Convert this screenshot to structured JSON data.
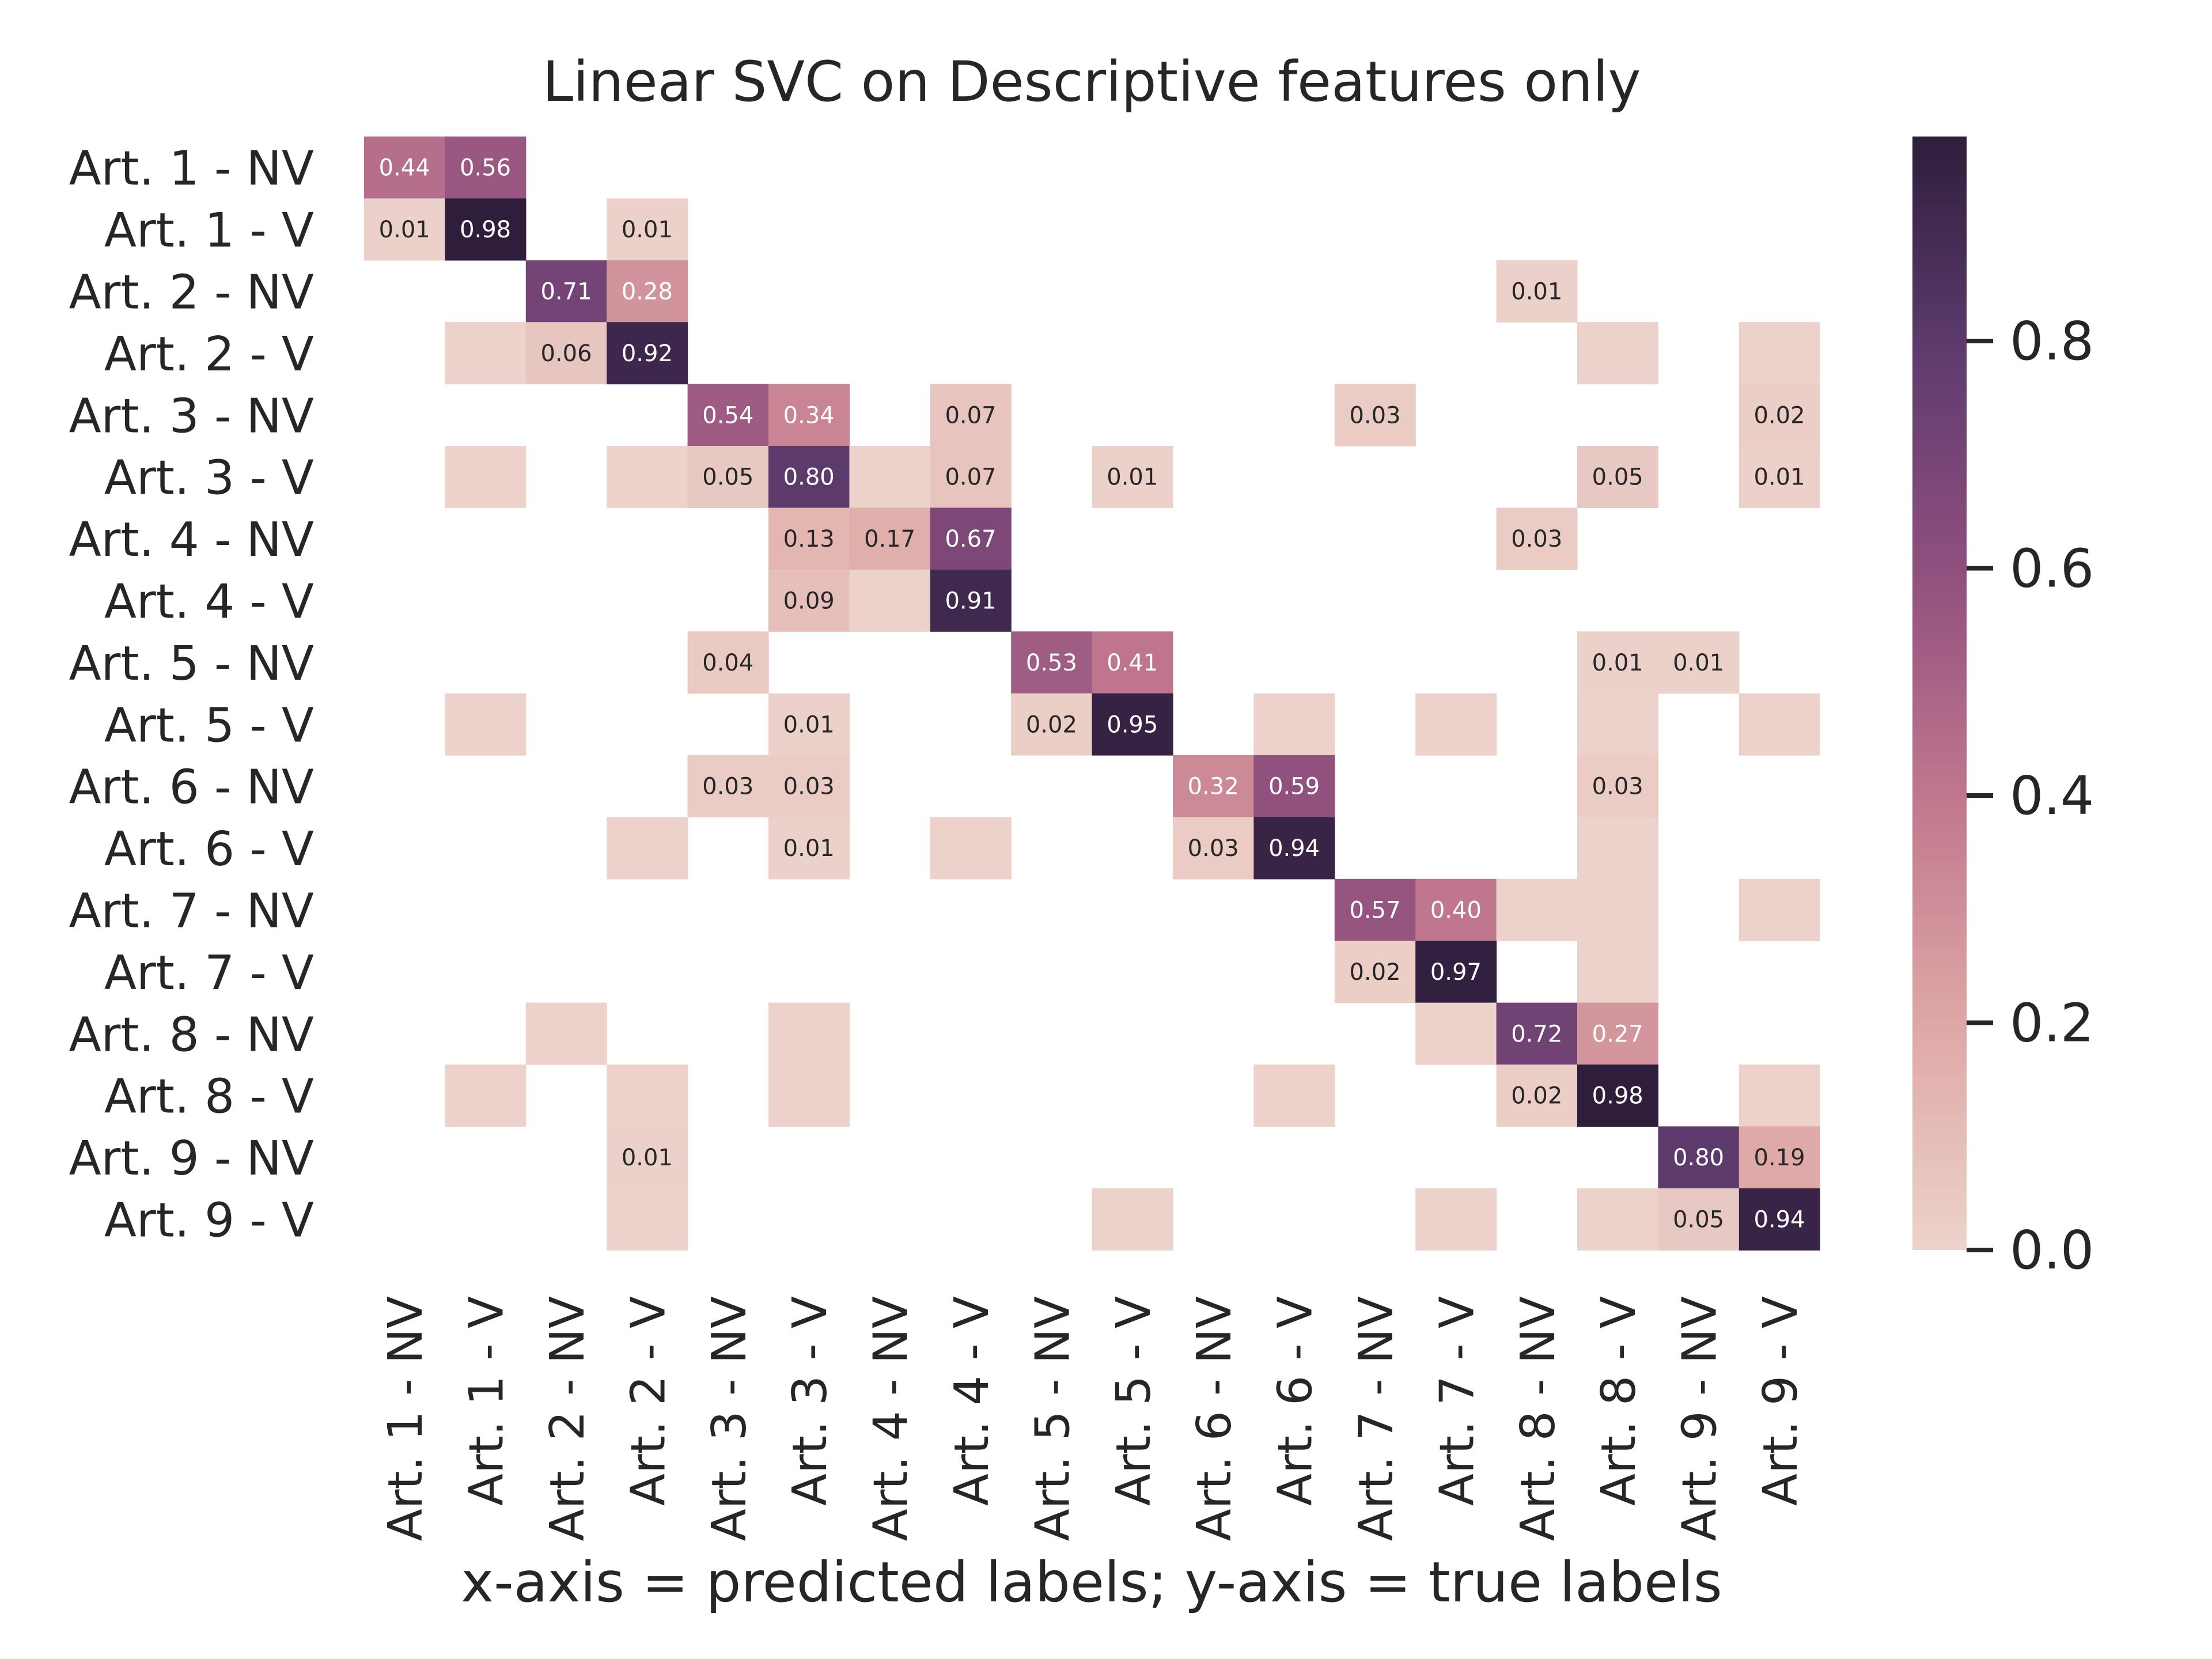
{
  "chart_data": {
    "type": "heatmap",
    "title": "Linear SVC on Descriptive features only",
    "xlabel": "x-axis = predicted labels; y-axis = true labels",
    "ylabel": "",
    "x_categories": [
      "Art. 1 - NV",
      "Art. 1 - V",
      "Art. 2 - NV",
      "Art. 2 - V",
      "Art. 3 - NV",
      "Art. 3 - V",
      "Art. 4 - NV",
      "Art. 4 - V",
      "Art. 5 - NV",
      "Art. 5 - V",
      "Art. 6 - NV",
      "Art. 6 - V",
      "Art. 7 - NV",
      "Art. 7 - V",
      "Art. 8 - NV",
      "Art. 8 - V",
      "Art. 9 - NV",
      "Art. 9 - V"
    ],
    "y_categories": [
      "Art. 1 - NV",
      "Art. 1 - V",
      "Art. 2 - NV",
      "Art. 2 - V",
      "Art. 3 - NV",
      "Art. 3 - V",
      "Art. 4 - NV",
      "Art. 4 - V",
      "Art. 5 - NV",
      "Art. 5 - V",
      "Art. 6 - NV",
      "Art. 6 - V",
      "Art. 7 - NV",
      "Art. 7 - V",
      "Art. 8 - NV",
      "Art. 8 - V",
      "Art. 9 - NV",
      "Art. 9 - V"
    ],
    "cells": [
      {
        "row": 0,
        "col": 0,
        "value": 0.44,
        "label": "0.44"
      },
      {
        "row": 0,
        "col": 1,
        "value": 0.56,
        "label": "0.56"
      },
      {
        "row": 1,
        "col": 0,
        "value": 0.01,
        "label": "0.01"
      },
      {
        "row": 1,
        "col": 1,
        "value": 0.98,
        "label": "0.98"
      },
      {
        "row": 1,
        "col": 3,
        "value": 0.01,
        "label": "0.01"
      },
      {
        "row": 2,
        "col": 2,
        "value": 0.71,
        "label": "0.71"
      },
      {
        "row": 2,
        "col": 3,
        "value": 0.28,
        "label": "0.28"
      },
      {
        "row": 2,
        "col": 14,
        "value": 0.01,
        "label": "0.01"
      },
      {
        "row": 3,
        "col": 1,
        "value": 0.004,
        "label": ""
      },
      {
        "row": 3,
        "col": 2,
        "value": 0.06,
        "label": "0.06"
      },
      {
        "row": 3,
        "col": 3,
        "value": 0.92,
        "label": "0.92"
      },
      {
        "row": 3,
        "col": 15,
        "value": 0.004,
        "label": ""
      },
      {
        "row": 3,
        "col": 17,
        "value": 0.004,
        "label": ""
      },
      {
        "row": 4,
        "col": 4,
        "value": 0.54,
        "label": "0.54"
      },
      {
        "row": 4,
        "col": 5,
        "value": 0.34,
        "label": "0.34"
      },
      {
        "row": 4,
        "col": 7,
        "value": 0.07,
        "label": "0.07"
      },
      {
        "row": 4,
        "col": 12,
        "value": 0.03,
        "label": "0.03"
      },
      {
        "row": 4,
        "col": 17,
        "value": 0.02,
        "label": "0.02"
      },
      {
        "row": 5,
        "col": 1,
        "value": 0.004,
        "label": ""
      },
      {
        "row": 5,
        "col": 3,
        "value": 0.004,
        "label": ""
      },
      {
        "row": 5,
        "col": 4,
        "value": 0.05,
        "label": "0.05"
      },
      {
        "row": 5,
        "col": 5,
        "value": 0.8,
        "label": "0.80"
      },
      {
        "row": 5,
        "col": 6,
        "value": 0.004,
        "label": ""
      },
      {
        "row": 5,
        "col": 7,
        "value": 0.07,
        "label": "0.07"
      },
      {
        "row": 5,
        "col": 9,
        "value": 0.01,
        "label": "0.01"
      },
      {
        "row": 5,
        "col": 15,
        "value": 0.05,
        "label": "0.05"
      },
      {
        "row": 5,
        "col": 17,
        "value": 0.01,
        "label": "0.01"
      },
      {
        "row": 6,
        "col": 5,
        "value": 0.13,
        "label": "0.13"
      },
      {
        "row": 6,
        "col": 6,
        "value": 0.17,
        "label": "0.17"
      },
      {
        "row": 6,
        "col": 7,
        "value": 0.67,
        "label": "0.67"
      },
      {
        "row": 6,
        "col": 14,
        "value": 0.03,
        "label": "0.03"
      },
      {
        "row": 7,
        "col": 5,
        "value": 0.09,
        "label": "0.09"
      },
      {
        "row": 7,
        "col": 6,
        "value": 0.004,
        "label": ""
      },
      {
        "row": 7,
        "col": 7,
        "value": 0.91,
        "label": "0.91"
      },
      {
        "row": 8,
        "col": 4,
        "value": 0.04,
        "label": "0.04"
      },
      {
        "row": 8,
        "col": 8,
        "value": 0.53,
        "label": "0.53"
      },
      {
        "row": 8,
        "col": 9,
        "value": 0.41,
        "label": "0.41"
      },
      {
        "row": 8,
        "col": 15,
        "value": 0.01,
        "label": "0.01"
      },
      {
        "row": 8,
        "col": 16,
        "value": 0.01,
        "label": "0.01"
      },
      {
        "row": 9,
        "col": 1,
        "value": 0.004,
        "label": ""
      },
      {
        "row": 9,
        "col": 5,
        "value": 0.01,
        "label": "0.01"
      },
      {
        "row": 9,
        "col": 8,
        "value": 0.02,
        "label": "0.02"
      },
      {
        "row": 9,
        "col": 9,
        "value": 0.95,
        "label": "0.95"
      },
      {
        "row": 9,
        "col": 11,
        "value": 0.004,
        "label": ""
      },
      {
        "row": 9,
        "col": 13,
        "value": 0.004,
        "label": ""
      },
      {
        "row": 9,
        "col": 15,
        "value": 0.004,
        "label": ""
      },
      {
        "row": 9,
        "col": 17,
        "value": 0.004,
        "label": ""
      },
      {
        "row": 10,
        "col": 4,
        "value": 0.03,
        "label": "0.03"
      },
      {
        "row": 10,
        "col": 5,
        "value": 0.03,
        "label": "0.03"
      },
      {
        "row": 10,
        "col": 10,
        "value": 0.32,
        "label": "0.32"
      },
      {
        "row": 10,
        "col": 11,
        "value": 0.59,
        "label": "0.59"
      },
      {
        "row": 10,
        "col": 15,
        "value": 0.03,
        "label": "0.03"
      },
      {
        "row": 11,
        "col": 3,
        "value": 0.004,
        "label": ""
      },
      {
        "row": 11,
        "col": 5,
        "value": 0.01,
        "label": "0.01"
      },
      {
        "row": 11,
        "col": 7,
        "value": 0.004,
        "label": ""
      },
      {
        "row": 11,
        "col": 10,
        "value": 0.03,
        "label": "0.03"
      },
      {
        "row": 11,
        "col": 11,
        "value": 0.94,
        "label": "0.94"
      },
      {
        "row": 11,
        "col": 15,
        "value": 0.004,
        "label": ""
      },
      {
        "row": 12,
        "col": 12,
        "value": 0.57,
        "label": "0.57"
      },
      {
        "row": 12,
        "col": 13,
        "value": 0.4,
        "label": "0.40"
      },
      {
        "row": 12,
        "col": 14,
        "value": 0.004,
        "label": ""
      },
      {
        "row": 12,
        "col": 15,
        "value": 0.004,
        "label": ""
      },
      {
        "row": 12,
        "col": 17,
        "value": 0.004,
        "label": ""
      },
      {
        "row": 13,
        "col": 12,
        "value": 0.02,
        "label": "0.02"
      },
      {
        "row": 13,
        "col": 13,
        "value": 0.97,
        "label": "0.97"
      },
      {
        "row": 13,
        "col": 15,
        "value": 0.004,
        "label": ""
      },
      {
        "row": 14,
        "col": 2,
        "value": 0.004,
        "label": ""
      },
      {
        "row": 14,
        "col": 5,
        "value": 0.004,
        "label": ""
      },
      {
        "row": 14,
        "col": 13,
        "value": 0.004,
        "label": ""
      },
      {
        "row": 14,
        "col": 14,
        "value": 0.72,
        "label": "0.72"
      },
      {
        "row": 14,
        "col": 15,
        "value": 0.27,
        "label": "0.27"
      },
      {
        "row": 15,
        "col": 1,
        "value": 0.004,
        "label": ""
      },
      {
        "row": 15,
        "col": 3,
        "value": 0.004,
        "label": ""
      },
      {
        "row": 15,
        "col": 5,
        "value": 0.004,
        "label": ""
      },
      {
        "row": 15,
        "col": 11,
        "value": 0.004,
        "label": ""
      },
      {
        "row": 15,
        "col": 14,
        "value": 0.02,
        "label": "0.02"
      },
      {
        "row": 15,
        "col": 15,
        "value": 0.98,
        "label": "0.98"
      },
      {
        "row": 15,
        "col": 17,
        "value": 0.004,
        "label": ""
      },
      {
        "row": 16,
        "col": 3,
        "value": 0.01,
        "label": "0.01"
      },
      {
        "row": 16,
        "col": 16,
        "value": 0.8,
        "label": "0.80"
      },
      {
        "row": 16,
        "col": 17,
        "value": 0.19,
        "label": "0.19"
      },
      {
        "row": 17,
        "col": 3,
        "value": 0.004,
        "label": ""
      },
      {
        "row": 17,
        "col": 9,
        "value": 0.004,
        "label": ""
      },
      {
        "row": 17,
        "col": 13,
        "value": 0.004,
        "label": ""
      },
      {
        "row": 17,
        "col": 15,
        "value": 0.004,
        "label": ""
      },
      {
        "row": 17,
        "col": 16,
        "value": 0.05,
        "label": "0.05"
      },
      {
        "row": 17,
        "col": 17,
        "value": 0.94,
        "label": "0.94"
      }
    ],
    "colorbar": {
      "range": [
        0,
        0.98
      ],
      "ticks": [
        0.0,
        0.2,
        0.4,
        0.6,
        0.8
      ],
      "tick_labels": [
        "0.0",
        "0.2",
        "0.4",
        "0.6",
        "0.8"
      ],
      "colors": [
        "#ecd3cb",
        "#dea8a6",
        "#c2798e",
        "#92517f",
        "#603c6f",
        "#2e1e3c"
      ]
    },
    "grid": false
  }
}
